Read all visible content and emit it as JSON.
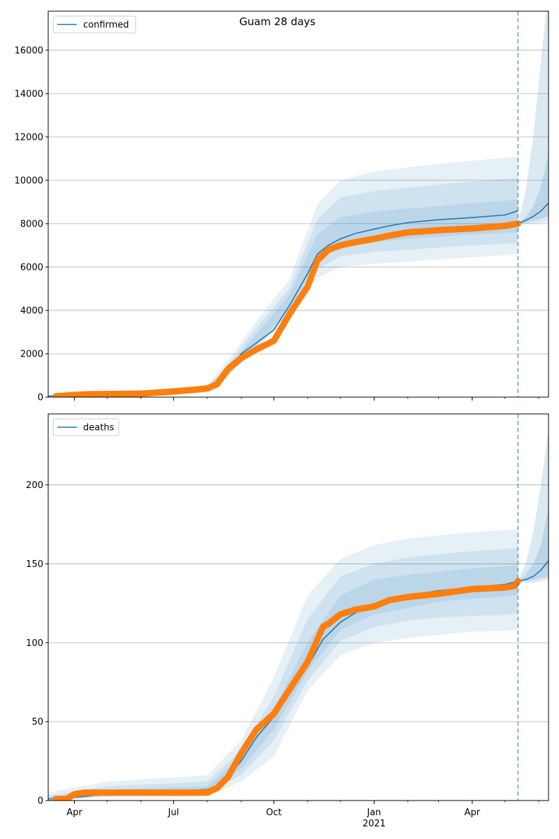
{
  "figure": {
    "title": "Guam 28 days"
  },
  "colors": {
    "model": "#1f77b4",
    "observed": "#ff7f0e",
    "band": "#1f77b4",
    "grid": "#b0b0b0",
    "axis": "#000000"
  },
  "x_axis": {
    "range": [
      "2020-03-08",
      "2021-06-10"
    ],
    "ticks": [
      {
        "date": "2020-04-01",
        "label": "Apr"
      },
      {
        "date": "2020-07-01",
        "label": "Jul"
      },
      {
        "date": "2020-10-01",
        "label": "Oct"
      },
      {
        "date": "2021-01-01",
        "label": "Jan"
      },
      {
        "date": "2021-04-01",
        "label": "Apr"
      }
    ],
    "year_label": "2021",
    "forecast_start": "2021-05-13"
  },
  "chart_data": [
    {
      "type": "line",
      "legend": "confirmed",
      "legend_position": "top-left",
      "grid": true,
      "ylim": [
        0,
        17800
      ],
      "yticks": [
        0,
        2000,
        4000,
        6000,
        8000,
        10000,
        12000,
        14000,
        16000
      ],
      "model": {
        "x": [
          "2020-03-08",
          "2020-04-01",
          "2020-05-01",
          "2020-06-01",
          "2020-07-01",
          "2020-07-20",
          "2020-08-01",
          "2020-08-10",
          "2020-08-20",
          "2020-09-01",
          "2020-09-15",
          "2020-10-01",
          "2020-10-15",
          "2020-11-01",
          "2020-11-10",
          "2020-11-20",
          "2020-12-01",
          "2020-12-15",
          "2021-01-01",
          "2021-01-15",
          "2021-02-01",
          "2021-03-01",
          "2021-04-01",
          "2021-05-01",
          "2021-05-13"
        ],
        "y": [
          50,
          100,
          140,
          180,
          280,
          350,
          420,
          560,
          1150,
          2000,
          2500,
          3100,
          4200,
          5700,
          6600,
          7000,
          7300,
          7550,
          7750,
          7900,
          8050,
          8180,
          8280,
          8400,
          8600
        ]
      },
      "forecast": {
        "x": [
          "2021-05-13",
          "2021-05-20",
          "2021-05-27",
          "2021-06-03",
          "2021-06-10"
        ],
        "median": [
          8000,
          8150,
          8330,
          8580,
          8950
        ],
        "inner_low": [
          8000,
          8060,
          8130,
          8220,
          8350
        ],
        "inner_high": [
          8000,
          8300,
          8800,
          9700,
          11200
        ],
        "outer_low": [
          8000,
          8000,
          8020,
          8050,
          8100
        ],
        "outer_high": [
          8000,
          9500,
          12000,
          15500,
          18800
        ]
      },
      "bands": [
        {
          "x": [
            "2020-03-08",
            "2020-07-01",
            "2020-08-01",
            "2020-08-20",
            "2020-09-15",
            "2020-10-15",
            "2020-11-10",
            "2020-12-01",
            "2021-01-01",
            "2021-02-01",
            "2021-03-01",
            "2021-04-01",
            "2021-05-13"
          ],
          "low": [
            40,
            240,
            350,
            950,
            2200,
            3700,
            5500,
            6000,
            6150,
            6250,
            6350,
            6450,
            6600
          ],
          "high": [
            70,
            330,
            520,
            1700,
            3500,
            5400,
            8900,
            10000,
            10400,
            10600,
            10750,
            10900,
            11100
          ]
        },
        {
          "x": [
            "2020-03-08",
            "2020-07-01",
            "2020-08-01",
            "2020-08-20",
            "2020-09-15",
            "2020-10-15",
            "2020-11-10",
            "2020-12-01",
            "2021-01-01",
            "2021-02-01",
            "2021-03-01",
            "2021-04-01",
            "2021-05-13"
          ],
          "low": [
            45,
            255,
            380,
            1000,
            2300,
            3900,
            5900,
            6500,
            6700,
            6800,
            6900,
            7000,
            7100
          ],
          "high": [
            62,
            315,
            490,
            1500,
            3200,
            5000,
            8200,
            9200,
            9500,
            9650,
            9800,
            9950,
            10100
          ]
        },
        {
          "x": [
            "2020-03-08",
            "2020-07-01",
            "2020-08-01",
            "2020-08-20",
            "2020-09-15",
            "2020-10-15",
            "2020-11-10",
            "2020-12-01",
            "2021-01-01",
            "2021-02-01",
            "2021-03-01",
            "2021-04-01",
            "2021-05-13"
          ],
          "low": [
            48,
            265,
            395,
            1050,
            2400,
            4050,
            6250,
            6900,
            7150,
            7300,
            7400,
            7500,
            7600
          ],
          "high": [
            56,
            300,
            465,
            1350,
            2900,
            4700,
            7500,
            8300,
            8550,
            8700,
            8800,
            8950,
            9100
          ]
        }
      ],
      "observed": {
        "x": [
          "2020-03-15",
          "2020-04-01",
          "2020-04-15",
          "2020-05-01",
          "2020-06-01",
          "2020-07-01",
          "2020-07-20",
          "2020-08-01",
          "2020-08-10",
          "2020-08-20",
          "2020-09-01",
          "2020-09-15",
          "2020-10-01",
          "2020-10-15",
          "2020-11-01",
          "2020-11-10",
          "2020-11-20",
          "2020-12-01",
          "2020-12-15",
          "2021-01-01",
          "2021-01-15",
          "2021-02-01",
          "2021-03-01",
          "2021-04-01",
          "2021-05-01",
          "2021-05-13"
        ],
        "y": [
          40,
          100,
          135,
          140,
          160,
          260,
          340,
          400,
          600,
          1300,
          1800,
          2200,
          2600,
          3800,
          5100,
          6300,
          6800,
          7000,
          7150,
          7300,
          7450,
          7600,
          7700,
          7780,
          7900,
          8000
        ]
      }
    },
    {
      "type": "line",
      "legend": "deaths",
      "legend_position": "top-left",
      "grid": true,
      "ylim": [
        0,
        245
      ],
      "yticks": [
        0,
        50,
        100,
        150,
        200
      ],
      "model": {
        "x": [
          "2020-03-08",
          "2020-04-01",
          "2020-05-01",
          "2020-07-01",
          "2020-08-01",
          "2020-08-15",
          "2020-09-01",
          "2020-09-15",
          "2020-10-01",
          "2020-10-15",
          "2020-11-01",
          "2020-11-15",
          "2020-12-01",
          "2020-12-15",
          "2021-01-01",
          "2021-01-15",
          "2021-02-01",
          "2021-03-01",
          "2021-04-01",
          "2021-05-01",
          "2021-05-13"
        ],
        "y": [
          1,
          2,
          4,
          6,
          7,
          11,
          25,
          40,
          53,
          68,
          85,
          102,
          113,
          119,
          124,
          128,
          130,
          133,
          135,
          137,
          139
        ]
      },
      "forecast": {
        "x": [
          "2021-05-13",
          "2021-05-20",
          "2021-05-27",
          "2021-06-03",
          "2021-06-10"
        ],
        "median": [
          139,
          140,
          142,
          146,
          152
        ],
        "inner_low": [
          139,
          139,
          140,
          141,
          142
        ],
        "inner_high": [
          139,
          143,
          150,
          162,
          185
        ],
        "outer_low": [
          139,
          138,
          138,
          139,
          140
        ],
        "outer_high": [
          139,
          150,
          170,
          200,
          235
        ]
      },
      "bands": [
        {
          "x": [
            "2020-03-08",
            "2020-05-01",
            "2020-08-01",
            "2020-09-01",
            "2020-10-01",
            "2020-11-01",
            "2020-12-01",
            "2021-01-01",
            "2021-02-01",
            "2021-03-01",
            "2021-04-01",
            "2021-05-13"
          ],
          "low": [
            0,
            2,
            3,
            12,
            28,
            70,
            92,
            100,
            103,
            105,
            107,
            108
          ],
          "high": [
            5,
            12,
            16,
            38,
            78,
            130,
            153,
            162,
            166,
            168,
            170,
            172
          ]
        },
        {
          "x": [
            "2020-03-08",
            "2020-05-01",
            "2020-08-01",
            "2020-09-01",
            "2020-10-01",
            "2020-11-01",
            "2020-12-01",
            "2021-01-01",
            "2021-02-01",
            "2021-03-01",
            "2021-04-01",
            "2021-05-13"
          ],
          "low": [
            0,
            3,
            5,
            16,
            38,
            76,
            101,
            110,
            114,
            116,
            117,
            118
          ],
          "high": [
            3,
            9,
            12,
            32,
            66,
            115,
            142,
            150,
            154,
            156,
            158,
            160
          ]
        },
        {
          "x": [
            "2020-03-08",
            "2020-05-01",
            "2020-08-01",
            "2020-09-01",
            "2020-10-01",
            "2020-11-01",
            "2020-12-01",
            "2021-01-01",
            "2021-02-01",
            "2021-03-01",
            "2021-04-01",
            "2021-05-13"
          ],
          "low": [
            1,
            4,
            6,
            20,
            45,
            82,
            108,
            118,
            122,
            126,
            128,
            130
          ],
          "high": [
            2,
            7,
            9,
            28,
            58,
            100,
            130,
            140,
            143,
            145,
            147,
            149
          ]
        }
      ],
      "observed": {
        "x": [
          "2020-03-15",
          "2020-03-25",
          "2020-04-01",
          "2020-04-10",
          "2020-05-01",
          "2020-07-01",
          "2020-08-01",
          "2020-08-10",
          "2020-08-20",
          "2020-09-01",
          "2020-09-15",
          "2020-10-01",
          "2020-10-15",
          "2020-11-01",
          "2020-11-15",
          "2020-11-20",
          "2020-12-01",
          "2020-12-15",
          "2021-01-01",
          "2021-01-15",
          "2021-02-01",
          "2021-03-01",
          "2021-04-01",
          "2021-05-01",
          "2021-05-10",
          "2021-05-13"
        ],
        "y": [
          1,
          1,
          4,
          5,
          5,
          5,
          5,
          8,
          15,
          30,
          45,
          55,
          70,
          88,
          110,
          112,
          118,
          121,
          123,
          127,
          129,
          131,
          134,
          135,
          136,
          139
        ]
      }
    }
  ]
}
